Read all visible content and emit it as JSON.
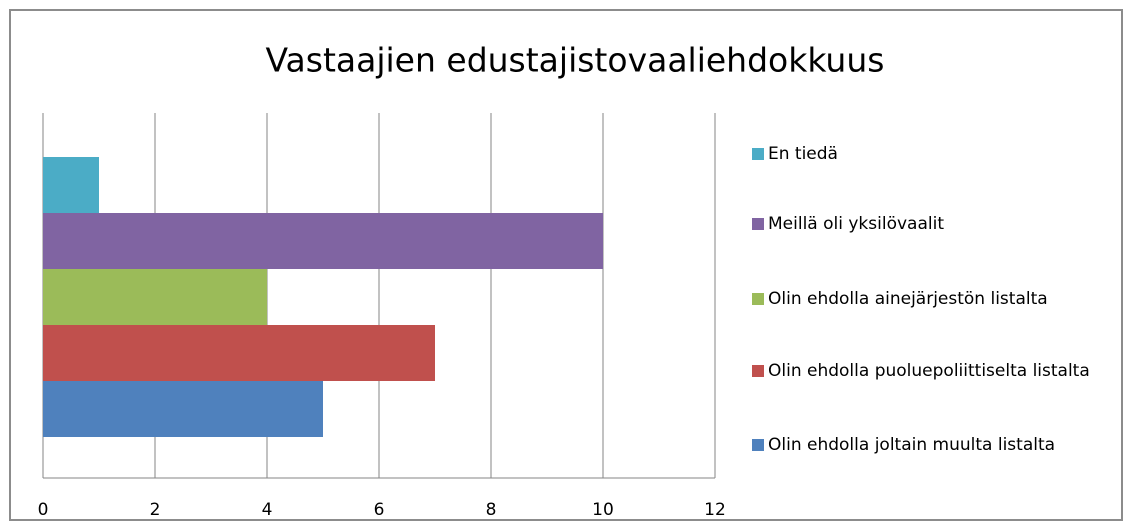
{
  "chart_data": {
    "type": "bar",
    "orientation": "horizontal",
    "title": "Vastaajien edustajistovaaliehdokkuus",
    "series": [
      {
        "name": "En tiedä",
        "color": "#4bacc6",
        "values": [
          1
        ]
      },
      {
        "name": "Meillä oli yksilövaalit",
        "color": "#8064a2",
        "values": [
          10
        ]
      },
      {
        "name": "Olin ehdolla ainejärjestön listalta",
        "color": "#9bbb59",
        "values": [
          4
        ]
      },
      {
        "name": "Olin ehdolla puoluepoliittiselta listalta",
        "color": "#c0504d",
        "values": [
          7
        ]
      },
      {
        "name": "Olin ehdolla joltain muulta listalta",
        "color": "#4f81bd",
        "values": [
          5
        ]
      }
    ],
    "xlim": [
      0,
      12
    ],
    "xticks": [
      0,
      2,
      4,
      6,
      8,
      10,
      12
    ],
    "grid": true,
    "legend": "right"
  }
}
